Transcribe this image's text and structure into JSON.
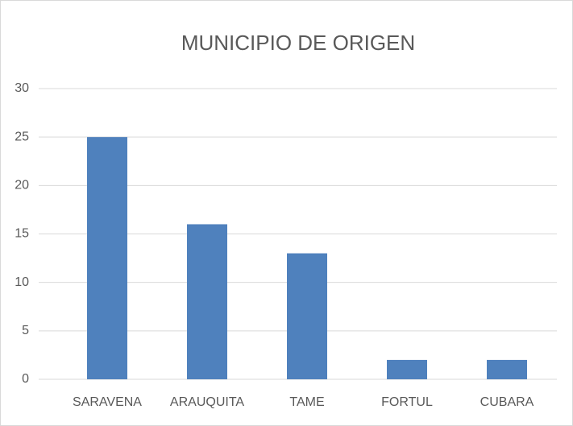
{
  "chart_data": {
    "type": "bar",
    "title": "MUNICIPIO DE ORIGEN",
    "categories": [
      "SARAVENA",
      "ARAUQUITA",
      "TAME",
      "FORTUL",
      "CUBARA"
    ],
    "values": [
      25,
      16,
      13,
      2,
      2
    ],
    "color": "#4f81bd",
    "ylim": [
      0,
      30
    ],
    "yticks": [
      0,
      5,
      10,
      15,
      20,
      25,
      30
    ],
    "grid": true
  }
}
